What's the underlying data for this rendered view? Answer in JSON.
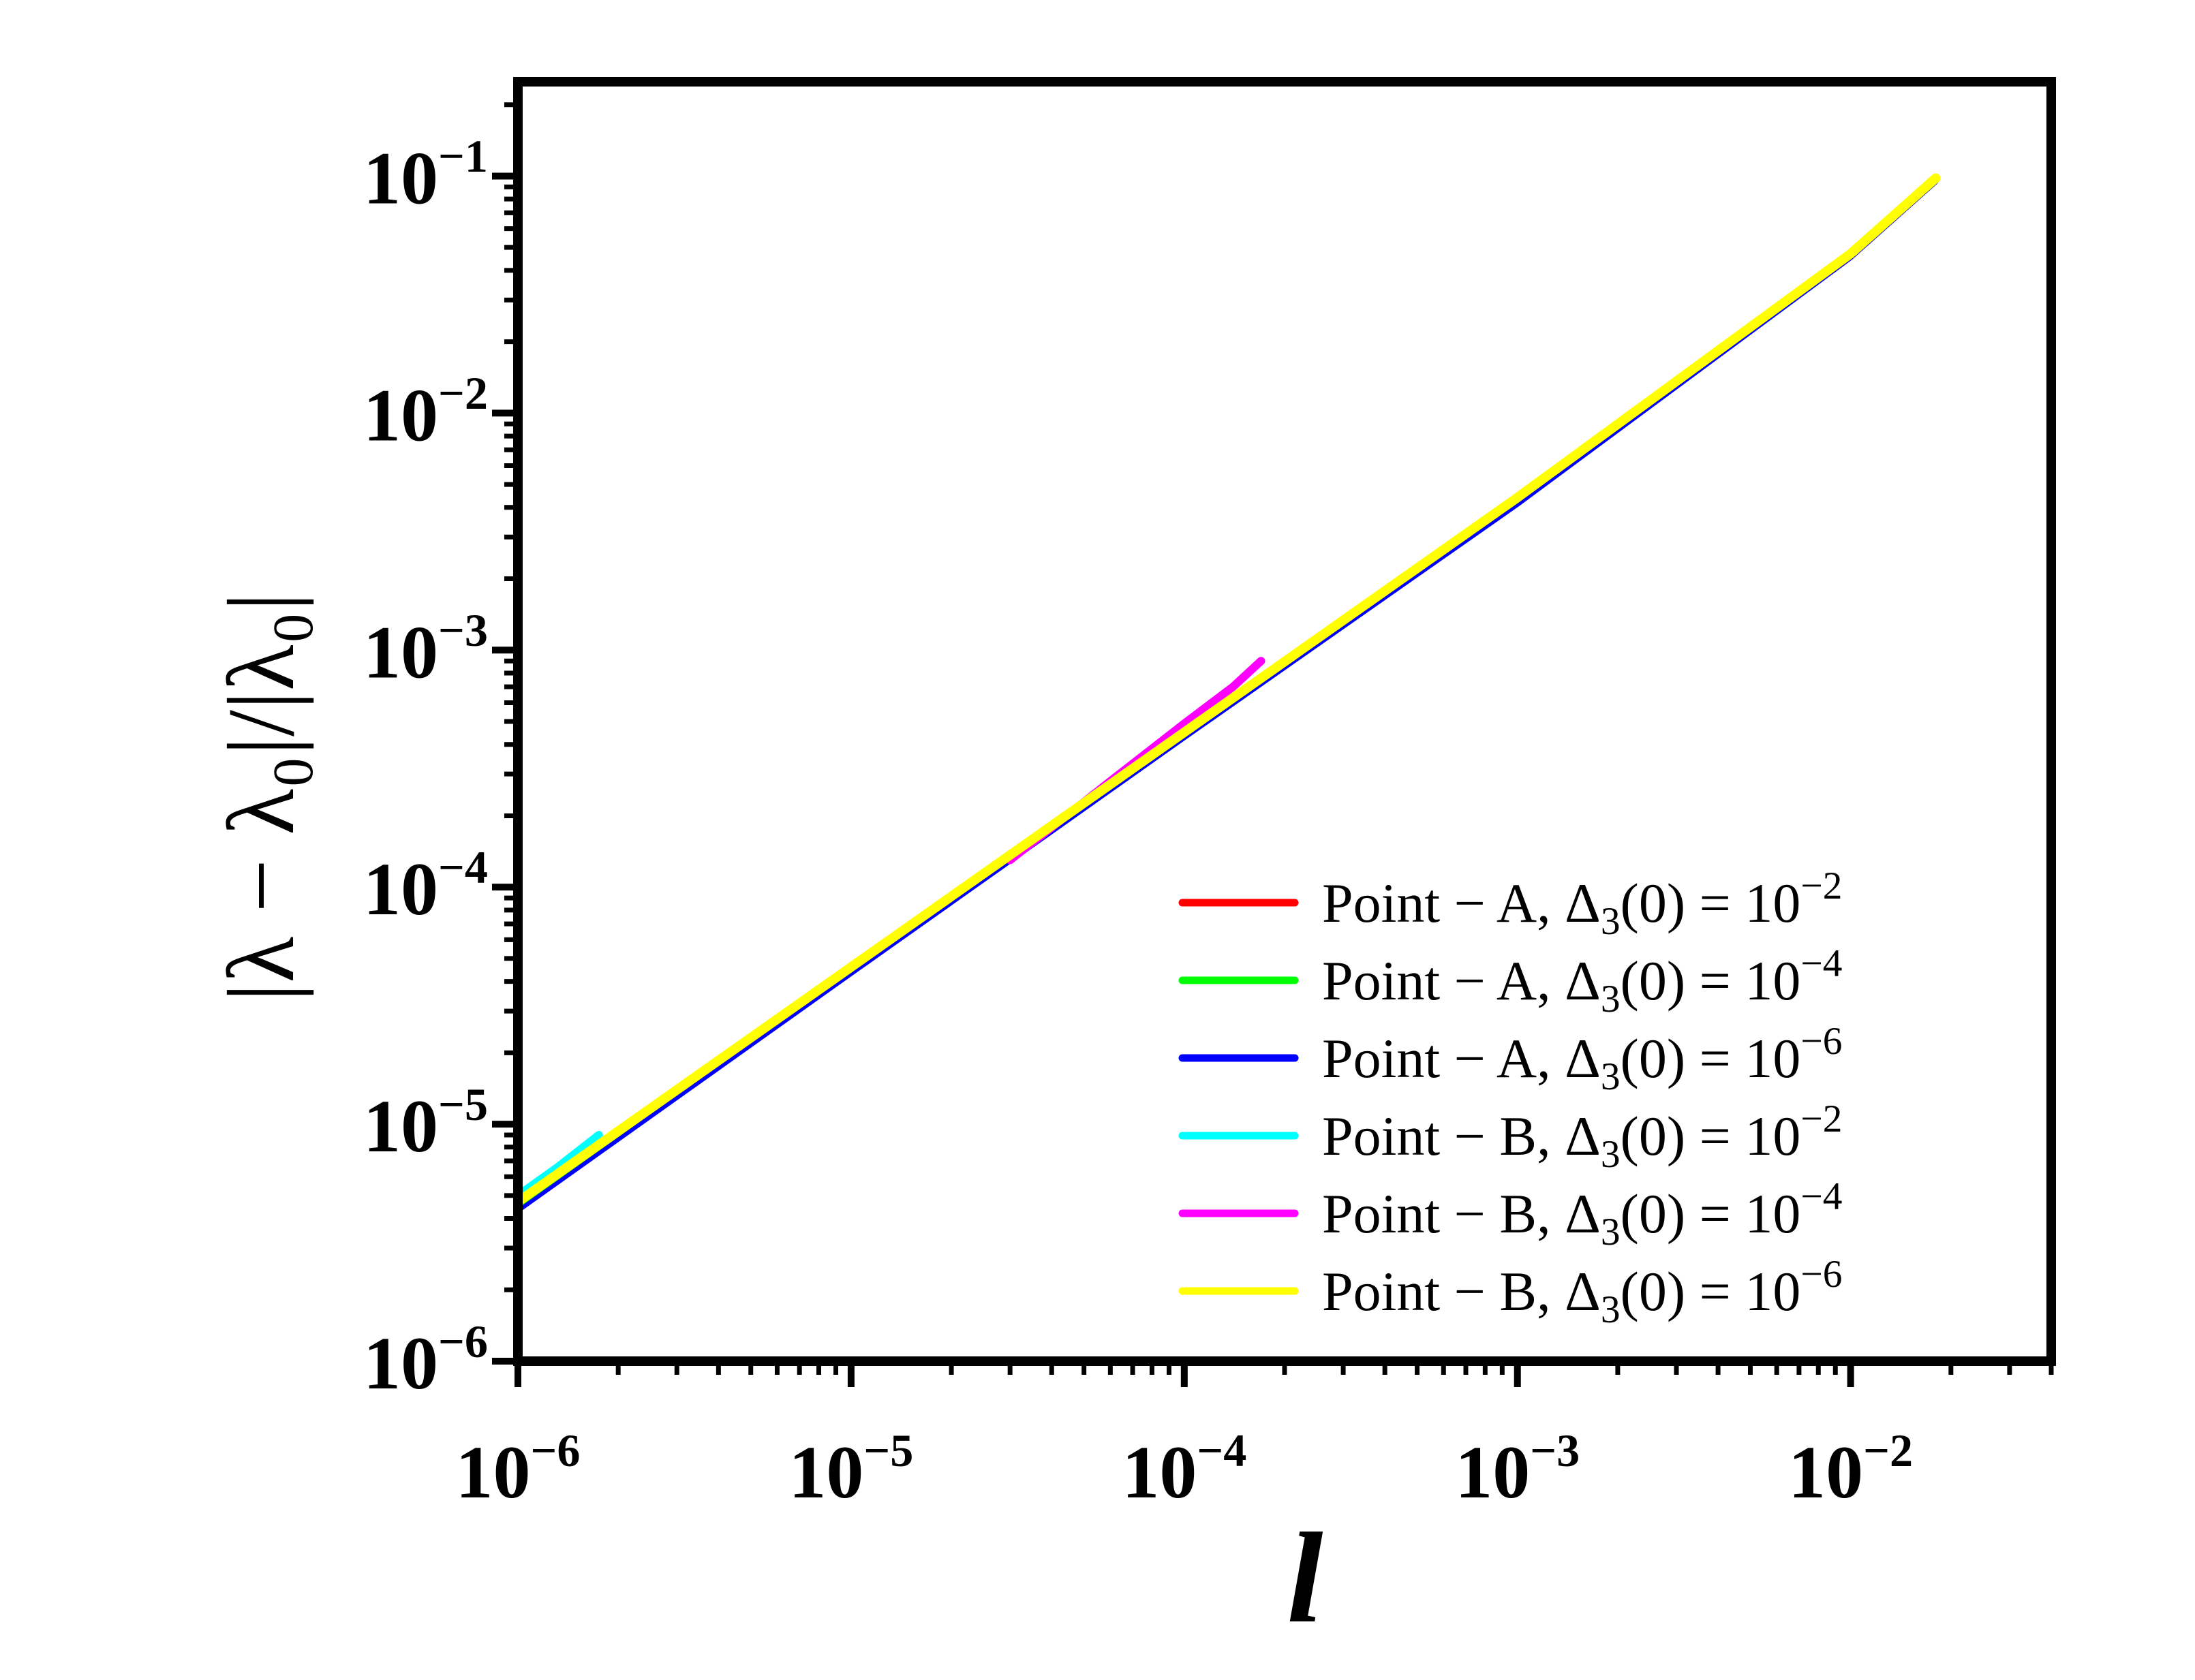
{
  "chart_data": {
    "type": "line",
    "xscale": "log",
    "yscale": "log",
    "xlim": [
      1e-06,
      0.04
    ],
    "ylim": [
      1e-06,
      0.25
    ],
    "xlabel": "l",
    "ylabel": "|λ − λ₀|/|λ₀|",
    "grid": false,
    "legend_position": "bottom-right",
    "x_ticks": [
      {
        "value": 1e-06,
        "base": "10",
        "exp": "−6"
      },
      {
        "value": 1e-05,
        "base": "10",
        "exp": "−5"
      },
      {
        "value": 0.0001,
        "base": "10",
        "exp": "−4"
      },
      {
        "value": 0.001,
        "base": "10",
        "exp": "−3"
      },
      {
        "value": 0.01,
        "base": "10",
        "exp": "−2"
      }
    ],
    "y_ticks": [
      {
        "value": 1e-06,
        "base": "10",
        "exp": "−6"
      },
      {
        "value": 1e-05,
        "base": "10",
        "exp": "−5"
      },
      {
        "value": 0.0001,
        "base": "10",
        "exp": "−4"
      },
      {
        "value": 0.001,
        "base": "10",
        "exp": "−3"
      },
      {
        "value": 0.01,
        "base": "10",
        "exp": "−2"
      },
      {
        "value": 0.1,
        "base": "10",
        "exp": "−1"
      }
    ],
    "series": [
      {
        "name": "Point − A, Δ3(0) = 10−2",
        "legend_prefix": "Point − A, Δ",
        "legend_sub": "3",
        "legend_mid": "(0) = 10",
        "legend_exp": "−2",
        "color": "#ff0000",
        "x": [
          1e-06,
          1e-05,
          0.0001,
          0.001,
          0.01,
          0.018
        ],
        "y": [
          4.4e-06,
          4.4e-05,
          0.00043,
          0.0042,
          0.046,
          0.095
        ]
      },
      {
        "name": "Point − A, Δ3(0) = 10−4",
        "legend_prefix": "Point − A, Δ",
        "legend_sub": "3",
        "legend_mid": "(0) = 10",
        "legend_exp": "−4",
        "color": "#00ff00",
        "x": [
          1e-06,
          1e-05,
          0.0001,
          0.001,
          0.01,
          0.018
        ],
        "y": [
          4.4e-06,
          4.4e-05,
          0.00043,
          0.0042,
          0.046,
          0.095
        ]
      },
      {
        "name": "Point − A, Δ3(0) = 10−6",
        "legend_prefix": "Point − A, Δ",
        "legend_sub": "3",
        "legend_mid": "(0) = 10",
        "legend_exp": "−6",
        "color": "#0000ff",
        "x": [
          1e-06,
          1e-05,
          0.0001,
          0.001,
          0.01,
          0.018
        ],
        "y": [
          4.3e-06,
          4.3e-05,
          0.000425,
          0.0041,
          0.045,
          0.094
        ]
      },
      {
        "name": "Point − B, Δ3(0) = 10−2",
        "legend_prefix": "Point − B, Δ",
        "legend_sub": "3",
        "legend_mid": "(0) = 10",
        "legend_exp": "−2",
        "color": "#00ffff",
        "x": [
          1e-06,
          1.3e-06,
          1.75e-06
        ],
        "y": [
          5e-06,
          6.5e-06,
          9e-06
        ]
      },
      {
        "name": "Point − B, Δ3(0) = 10−4",
        "legend_prefix": "Point − B, Δ",
        "legend_sub": "3",
        "legend_mid": "(0) = 10",
        "legend_exp": "−4",
        "color": "#ff00ff",
        "x": [
          3e-05,
          6e-05,
          0.0001,
          0.00014,
          0.00017
        ],
        "y": [
          0.00013,
          0.00028,
          0.00049,
          0.0007,
          0.0009
        ]
      },
      {
        "name": "Point − B, Δ3(0) = 10−6",
        "legend_prefix": "Point − B, Δ",
        "legend_sub": "3",
        "legend_mid": "(0) = 10",
        "legend_exp": "−6",
        "color": "#ffff00",
        "x": [
          1e-06,
          1e-05,
          0.0001,
          0.001,
          0.01,
          0.018
        ],
        "y": [
          4.7e-06,
          4.6e-05,
          0.00045,
          0.0044,
          0.047,
          0.098
        ]
      }
    ]
  }
}
